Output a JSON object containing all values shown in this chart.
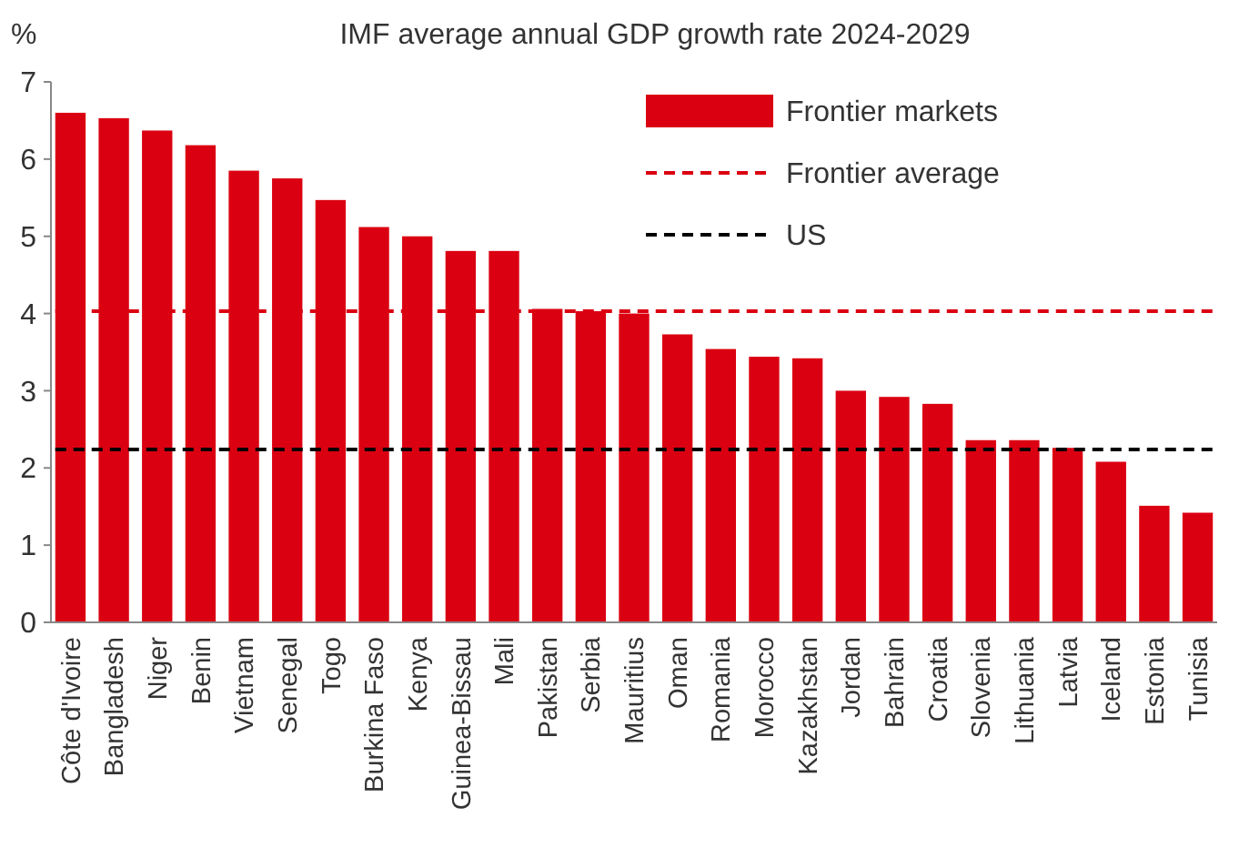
{
  "chart_data": {
    "type": "bar",
    "title": "IMF average annual GDP growth rate 2024-2029",
    "ylabel": "%",
    "categories": [
      "Côte d'Ivoire",
      "Bangladesh",
      "Niger",
      "Benin",
      "Vietnam",
      "Senegal",
      "Togo",
      "Burkina Faso",
      "Kenya",
      "Guinea-Bissau",
      "Mali",
      "Pakistan",
      "Serbia",
      "Mauritius",
      "Oman",
      "Romania",
      "Morocco",
      "Kazakhstan",
      "Jordan",
      "Bahrain",
      "Croatia",
      "Slovenia",
      "Lithuania",
      "Latvia",
      "Iceland",
      "Estonia",
      "Tunisia"
    ],
    "series": [
      {
        "name": "Frontier markets",
        "color": "#db0011",
        "values": [
          6.6,
          6.53,
          6.37,
          6.18,
          5.85,
          5.75,
          5.47,
          5.12,
          5.0,
          4.81,
          4.81,
          4.06,
          4.03,
          4.0,
          3.73,
          3.54,
          3.44,
          3.42,
          3.0,
          2.92,
          2.83,
          2.36,
          2.36,
          2.26,
          2.08,
          1.51,
          1.42
        ]
      }
    ],
    "ylim": [
      0,
      7
    ],
    "yticks": [
      0,
      1,
      2,
      3,
      4,
      5,
      6,
      7
    ],
    "ref_lines": [
      {
        "axis": "y",
        "value": 4.03,
        "label": "Frontier average",
        "color": "#db0011",
        "line_style": "dashed"
      },
      {
        "axis": "y",
        "value": 2.24,
        "label": "US",
        "color": "#000000",
        "line_style": "dashed"
      }
    ],
    "legend": "top right",
    "grid": false
  }
}
